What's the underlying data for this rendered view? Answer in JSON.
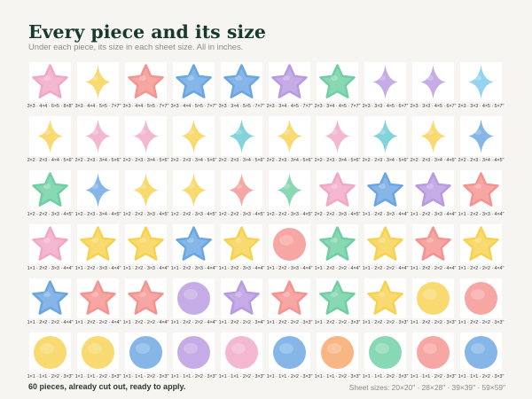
{
  "header": {
    "title": "Every piece and its size",
    "subtitle": "Under each piece, its size in each sheet size. All in inches."
  },
  "footer": {
    "pieces_note": "60 pieces, already cut out, ready to apply.",
    "sheet_sizes": "Sheet sizes: 20×20\"  ·  28×28\"  ·  39×39\"  ·  59×59\""
  },
  "colors": {
    "pink": "#f2a7c6",
    "yellow": "#f6d250",
    "coral": "#f4938f",
    "blue": "#6aa6e2",
    "purple": "#b89ae0",
    "green": "#6fcfa3",
    "teal": "#67c9d2",
    "orange": "#f7a66a",
    "lightblue": "#7ccaee"
  },
  "pieces": [
    {
      "shape": "star",
      "color": "pink",
      "sizes": "3×3 · 4×4 · 6×5 · 8×8\""
    },
    {
      "shape": "sparkle",
      "color": "yellow",
      "sizes": "3×3 · 4×4 · 5×5 · 7×7\""
    },
    {
      "shape": "star",
      "color": "coral",
      "sizes": "3×3 · 4×4 · 5×5 · 7×7\""
    },
    {
      "shape": "star",
      "color": "blue",
      "sizes": "3×3 · 4×4 · 5×5 · 7×7\""
    },
    {
      "shape": "star",
      "color": "blue",
      "sizes": "3×3 · 3×4 · 5×5 · 7×7\""
    },
    {
      "shape": "star",
      "color": "purple",
      "sizes": "2×3 · 3×4 · 4×5 · 7×7\""
    },
    {
      "shape": "star",
      "color": "green",
      "sizes": "2×3 · 3×4 · 4×5 · 7×7\""
    },
    {
      "shape": "sparkle",
      "color": "purple",
      "sizes": "2×3 · 3×3 · 4×5 · 6×7\""
    },
    {
      "shape": "sparkle",
      "color": "purple",
      "sizes": "2×3 · 3×3 · 4×5 · 6×7\""
    },
    {
      "shape": "sparkle",
      "color": "lightblue",
      "sizes": "2×3 · 3×3 · 4×5 · 5×7\""
    },
    {
      "shape": "sparkle",
      "color": "yellow",
      "sizes": "2×2 · 2×3 · 4×4 · 5×6\""
    },
    {
      "shape": "sparkle",
      "color": "pink",
      "sizes": "2×2 · 2×3 · 3×4 · 5×6\""
    },
    {
      "shape": "sparkle",
      "color": "pink",
      "sizes": "2×2 · 2×3 · 3×4 · 5×6\""
    },
    {
      "shape": "sparkle",
      "color": "yellow",
      "sizes": "2×2 · 2×3 · 3×4 · 5×6\""
    },
    {
      "shape": "sparkle",
      "color": "teal",
      "sizes": "2×2 · 2×3 · 3×4 · 5×6\""
    },
    {
      "shape": "sparkle",
      "color": "yellow",
      "sizes": "2×2 · 2×3 · 3×4 · 5×6\""
    },
    {
      "shape": "sparkle",
      "color": "pink",
      "sizes": "2×2 · 2×3 · 3×4 · 5×6\""
    },
    {
      "shape": "sparkle",
      "color": "teal",
      "sizes": "2×2 · 2×3 · 3×4 · 5×6\""
    },
    {
      "shape": "sparkle",
      "color": "yellow",
      "sizes": "2×2 · 2×3 · 3×4 · 4×6\""
    },
    {
      "shape": "sparkle",
      "color": "blue",
      "sizes": "2×2 · 2×3 · 3×4 · 4×5\""
    },
    {
      "shape": "star",
      "color": "green",
      "sizes": "1×2 · 2×2 · 3×3 · 4×5\""
    },
    {
      "shape": "sparkle",
      "color": "blue",
      "sizes": "1×2 · 2×3 · 3×4 · 4×5\""
    },
    {
      "shape": "sparkle",
      "color": "yellow",
      "sizes": "1×2 · 2×2 · 3×3 · 4×5\""
    },
    {
      "shape": "sparkle",
      "color": "yellow",
      "sizes": "1×2 · 2×2 · 3×3 · 4×5\""
    },
    {
      "shape": "sparkle",
      "color": "coral",
      "sizes": "1×2 · 2×2 · 3×3 · 4×5\""
    },
    {
      "shape": "sparkle",
      "color": "green",
      "sizes": "1×2 · 2×2 · 3×3 · 4×5\""
    },
    {
      "shape": "star",
      "color": "pink",
      "sizes": "2×2 · 2×2 · 3×3 · 4×5\""
    },
    {
      "shape": "star",
      "color": "blue",
      "sizes": "1×1 · 2×2 · 3×3 · 4×4\""
    },
    {
      "shape": "star",
      "color": "purple",
      "sizes": "1×1 · 2×2 · 3×3 · 4×4\""
    },
    {
      "shape": "star",
      "color": "coral",
      "sizes": "1×1 · 2×2 · 3×3 · 4×4\""
    },
    {
      "shape": "star",
      "color": "pink",
      "sizes": "1×1 · 2×2 · 3×3 · 4×4\""
    },
    {
      "shape": "star",
      "color": "yellow",
      "sizes": "1×1 · 2×2 · 3×3 · 4×4\""
    },
    {
      "shape": "star",
      "color": "yellow",
      "sizes": "1×1 · 2×2 · 3×3 · 4×4\""
    },
    {
      "shape": "star",
      "color": "blue",
      "sizes": "1×1 · 2×2 · 3×3 · 4×4\""
    },
    {
      "shape": "star",
      "color": "yellow",
      "sizes": "1×1 · 2×2 · 3×3 · 4×4\""
    },
    {
      "shape": "circle",
      "color": "coral",
      "sizes": "1×1 · 2×2 · 3×3 · 4×4\""
    },
    {
      "shape": "star",
      "color": "green",
      "sizes": "1×1 · 2×2 · 2×2 · 4×4\""
    },
    {
      "shape": "star",
      "color": "yellow",
      "sizes": "1×1 · 2×2 · 2×2 · 4×4\""
    },
    {
      "shape": "star",
      "color": "coral",
      "sizes": "1×1 · 2×2 · 2×2 · 4×4\""
    },
    {
      "shape": "star",
      "color": "yellow",
      "sizes": "1×1 · 2×2 · 2×2 · 4×4\""
    },
    {
      "shape": "star",
      "color": "blue",
      "sizes": "1×1 · 2×2 · 2×2 · 4×4\""
    },
    {
      "shape": "star",
      "color": "coral",
      "sizes": "1×1 · 2×2 · 2×2 · 4×4\""
    },
    {
      "shape": "star",
      "color": "coral",
      "sizes": "1×1 · 2×2 · 2×2 · 4×4\""
    },
    {
      "shape": "circle",
      "color": "purple",
      "sizes": "1×1 · 2×2 · 2×2 · 4×4\""
    },
    {
      "shape": "star",
      "color": "purple",
      "sizes": "1×1 · 2×2 · 2×2 · 3×4\""
    },
    {
      "shape": "star",
      "color": "coral",
      "sizes": "1×1 · 2×2 · 2×2 · 3×3\""
    },
    {
      "shape": "star",
      "color": "green",
      "sizes": "1×1 · 2×2 · 2×2 · 3×3\""
    },
    {
      "shape": "star",
      "color": "yellow",
      "sizes": "1×1 · 2×2 · 2×2 · 3×3\""
    },
    {
      "shape": "circle",
      "color": "yellow",
      "sizes": "1×1 · 2×2 · 2×2 · 3×3\""
    },
    {
      "shape": "circle",
      "color": "coral",
      "sizes": "1×1 · 2×2 · 2×2 · 3×3\""
    },
    {
      "shape": "circle",
      "color": "yellow",
      "sizes": "1×1 · 1×1 · 2×2 · 3×3\""
    },
    {
      "shape": "circle",
      "color": "yellow",
      "sizes": "1×1 · 1×1 · 2×2 · 3×3\""
    },
    {
      "shape": "circle",
      "color": "blue",
      "sizes": "1×1 · 1×1 · 2×2 · 3×3\""
    },
    {
      "shape": "circle",
      "color": "purple",
      "sizes": "1×1 · 1×1 · 2×2 · 3×3\""
    },
    {
      "shape": "circle",
      "color": "pink",
      "sizes": "1×1 · 1×1 · 2×2 · 3×3\""
    },
    {
      "shape": "circle",
      "color": "blue",
      "sizes": "1×1 · 1×1 · 2×2 · 3×3\""
    },
    {
      "shape": "circle",
      "color": "orange",
      "sizes": "1×1 · 1×1 · 2×2 · 3×3\""
    },
    {
      "shape": "circle",
      "color": "green",
      "sizes": "1×1 · 1×1 · 2×2 · 3×3\""
    },
    {
      "shape": "circle",
      "color": "coral",
      "sizes": "1×1 · 1×1 · 2×2 · 3×3\""
    },
    {
      "shape": "circle",
      "color": "blue",
      "sizes": "1×1 · 1×1 · 2×2 · 3×3\""
    }
  ]
}
